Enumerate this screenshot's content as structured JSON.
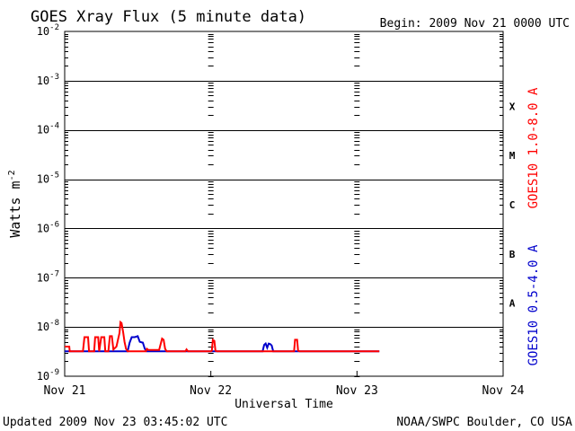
{
  "chart_data": {
    "type": "line",
    "title": "GOES Xray Flux (5 minute data)",
    "begin_label": "Begin:  2009 Nov 21 0000 UTC",
    "xlabel": "Universal Time",
    "ylabel_text": "Watts m",
    "ylabel_exp": "-2",
    "y_scale": "log",
    "ylim": [
      1e-09,
      0.01
    ],
    "xlim": [
      "2009-11-21T00:00",
      "2009-11-24T00:00"
    ],
    "grid": true,
    "x_ticks": [
      {
        "label": "Nov 21",
        "day": 0
      },
      {
        "label": "Nov 22",
        "day": 1
      },
      {
        "label": "Nov 23",
        "day": 2
      },
      {
        "label": "Nov 24",
        "day": 3
      }
    ],
    "y_ticks": [
      {
        "base": "10",
        "exp": "-2",
        "value": 0.01
      },
      {
        "base": "10",
        "exp": "-3",
        "value": 0.001
      },
      {
        "base": "10",
        "exp": "-4",
        "value": 0.0001
      },
      {
        "base": "10",
        "exp": "-5",
        "value": 1e-05
      },
      {
        "base": "10",
        "exp": "-6",
        "value": 1e-06
      },
      {
        "base": "10",
        "exp": "-7",
        "value": 1e-07
      },
      {
        "base": "10",
        "exp": "-8",
        "value": 1e-08
      },
      {
        "base": "10",
        "exp": "-9",
        "value": 1e-09
      }
    ],
    "flare_classes": [
      {
        "label": "X",
        "band_low": 0.0001
      },
      {
        "label": "M",
        "band_low": 1e-05
      },
      {
        "label": "C",
        "band_low": 1e-06
      },
      {
        "label": "B",
        "band_low": 1e-07
      },
      {
        "label": "A",
        "band_low": 1e-08
      }
    ],
    "series": [
      {
        "name": "GOES10 1.0-8.0 A",
        "color": "#ff0000",
        "points": [
          [
            "2009-11-21T00:00",
            4e-09
          ],
          [
            "2009-11-21T00:45",
            4e-09
          ],
          [
            "2009-11-21T00:50",
            3.2e-09
          ],
          [
            "2009-11-21T03:00",
            3.2e-09
          ],
          [
            "2009-11-21T03:15",
            6.2e-09
          ],
          [
            "2009-11-21T03:50",
            6.2e-09
          ],
          [
            "2009-11-21T04:00",
            3.2e-09
          ],
          [
            "2009-11-21T04:50",
            3.2e-09
          ],
          [
            "2009-11-21T05:00",
            6.2e-09
          ],
          [
            "2009-11-21T05:30",
            6.2e-09
          ],
          [
            "2009-11-21T05:40",
            3.2e-09
          ],
          [
            "2009-11-21T06:00",
            6.2e-09
          ],
          [
            "2009-11-21T06:30",
            6.2e-09
          ],
          [
            "2009-11-21T06:40",
            3.2e-09
          ],
          [
            "2009-11-21T07:10",
            3.2e-09
          ],
          [
            "2009-11-21T07:25",
            6.5e-09
          ],
          [
            "2009-11-21T07:45",
            6.5e-09
          ],
          [
            "2009-11-21T08:00",
            3.5e-09
          ],
          [
            "2009-11-21T08:30",
            4e-09
          ],
          [
            "2009-11-21T08:45",
            5.5e-09
          ],
          [
            "2009-11-21T09:00",
            7.5e-09
          ],
          [
            "2009-11-21T09:10",
            1.25e-08
          ],
          [
            "2009-11-21T09:20",
            1.2e-08
          ],
          [
            "2009-11-21T09:35",
            8e-09
          ],
          [
            "2009-11-21T09:50",
            5e-09
          ],
          [
            "2009-11-21T10:05",
            3.6e-09
          ],
          [
            "2009-11-21T10:20",
            3.2e-09
          ],
          [
            "2009-11-21T13:20",
            3.2e-09
          ],
          [
            "2009-11-21T13:30",
            3.6e-09
          ],
          [
            "2009-11-21T13:45",
            3.4e-09
          ],
          [
            "2009-11-21T15:30",
            3.4e-09
          ],
          [
            "2009-11-21T15:45",
            4.5e-09
          ],
          [
            "2009-11-21T16:00",
            5.8e-09
          ],
          [
            "2009-11-21T16:15",
            5.5e-09
          ],
          [
            "2009-11-21T16:30",
            3.6e-09
          ],
          [
            "2009-11-21T16:45",
            3.2e-09
          ],
          [
            "2009-11-21T19:50",
            3.2e-09
          ],
          [
            "2009-11-21T20:00",
            3.5e-09
          ],
          [
            "2009-11-21T20:15",
            3.2e-09
          ],
          [
            "2009-11-22T00:00",
            3.2e-09
          ],
          [
            "2009-11-22T00:10",
            3.3e-09
          ],
          [
            "2009-11-22T00:20",
            5.5e-09
          ],
          [
            "2009-11-22T00:35",
            5.2e-09
          ],
          [
            "2009-11-22T00:45",
            3.3e-09
          ],
          [
            "2009-11-22T01:00",
            3.2e-09
          ],
          [
            "2009-11-22T13:40",
            3.2e-09
          ],
          [
            "2009-11-22T13:50",
            5.5e-09
          ],
          [
            "2009-11-22T14:10",
            5.5e-09
          ],
          [
            "2009-11-22T14:20",
            3.3e-09
          ],
          [
            "2009-11-22T14:35",
            3.2e-09
          ],
          [
            "2009-11-23T03:40",
            3.2e-09
          ]
        ]
      },
      {
        "name": "GOES10 0.5-4.0 A",
        "color": "#0000cc",
        "points": [
          [
            "2009-11-21T00:00",
            3.2e-09
          ],
          [
            "2009-11-21T10:20",
            3.2e-09
          ],
          [
            "2009-11-21T10:40",
            4.8e-09
          ],
          [
            "2009-11-21T11:00",
            6.2e-09
          ],
          [
            "2009-11-21T11:30",
            6.2e-09
          ],
          [
            "2009-11-21T12:00",
            6.5e-09
          ],
          [
            "2009-11-21T12:20",
            5e-09
          ],
          [
            "2009-11-21T12:50",
            4.8e-09
          ],
          [
            "2009-11-21T13:10",
            3.6e-09
          ],
          [
            "2009-11-21T13:30",
            3.2e-09
          ],
          [
            "2009-11-22T08:30",
            3.2e-09
          ],
          [
            "2009-11-22T08:45",
            4.3e-09
          ],
          [
            "2009-11-22T09:00",
            4.6e-09
          ],
          [
            "2009-11-22T09:15",
            3.8e-09
          ],
          [
            "2009-11-22T09:30",
            4.6e-09
          ],
          [
            "2009-11-22T09:45",
            4.5e-09
          ],
          [
            "2009-11-22T10:00",
            4.2e-09
          ],
          [
            "2009-11-22T10:15",
            3.2e-09
          ],
          [
            "2009-11-23T03:40",
            3.2e-09
          ]
        ]
      }
    ]
  },
  "footer": {
    "updated": "Updated 2009 Nov 23 03:45:02 UTC",
    "source": "NOAA/SWPC Boulder, CO USA"
  }
}
